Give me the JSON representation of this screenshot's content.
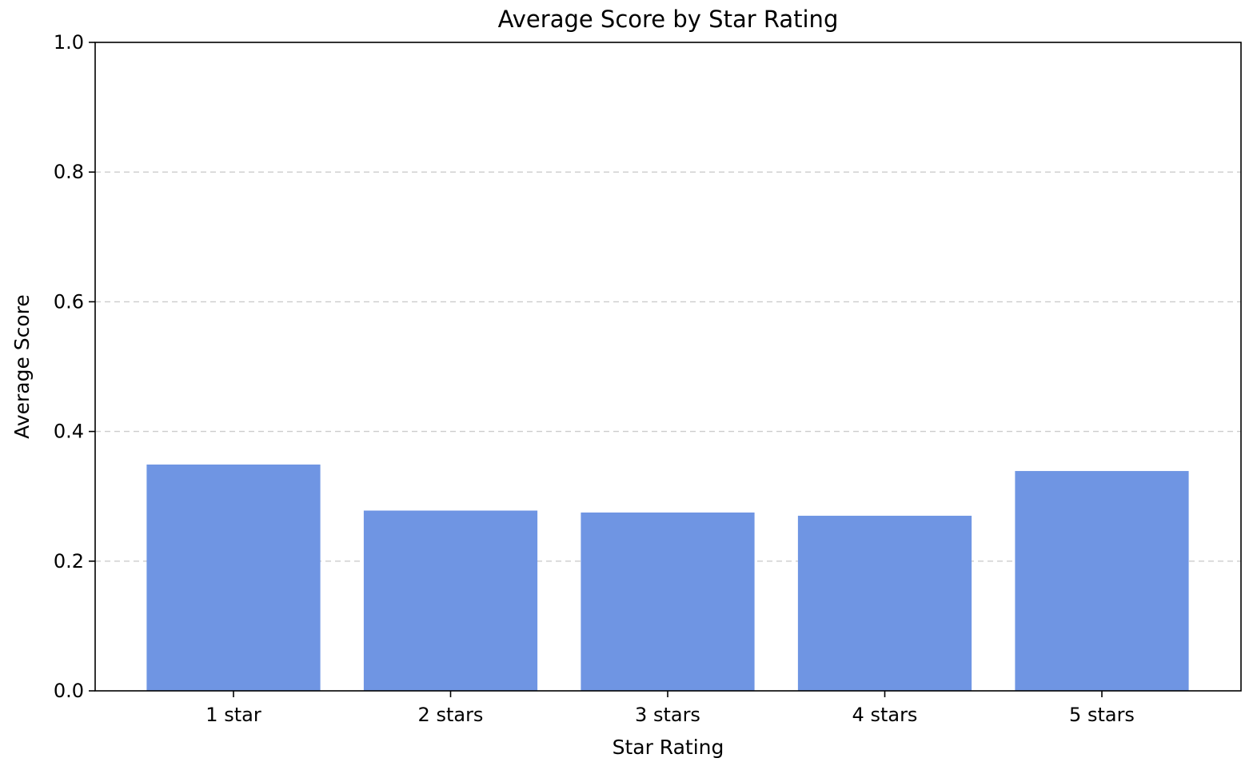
{
  "chart_data": {
    "type": "bar",
    "title": "Average Score by Star Rating",
    "xlabel": "Star Rating",
    "ylabel": "Average Score",
    "categories": [
      "1 star",
      "2 stars",
      "3 stars",
      "4 stars",
      "5 stars"
    ],
    "values": [
      0.349,
      0.278,
      0.275,
      0.27,
      0.339
    ],
    "ylim": [
      0,
      1.0
    ],
    "yticks": [
      0.0,
      0.2,
      0.4,
      0.6,
      0.8,
      1.0
    ],
    "ytick_labels": [
      "0.0",
      "0.2",
      "0.4",
      "0.6",
      "0.8",
      "1.0"
    ],
    "grid": "y-dashed",
    "bar_color": "#6f95e3",
    "grid_color": "#cccccc"
  }
}
